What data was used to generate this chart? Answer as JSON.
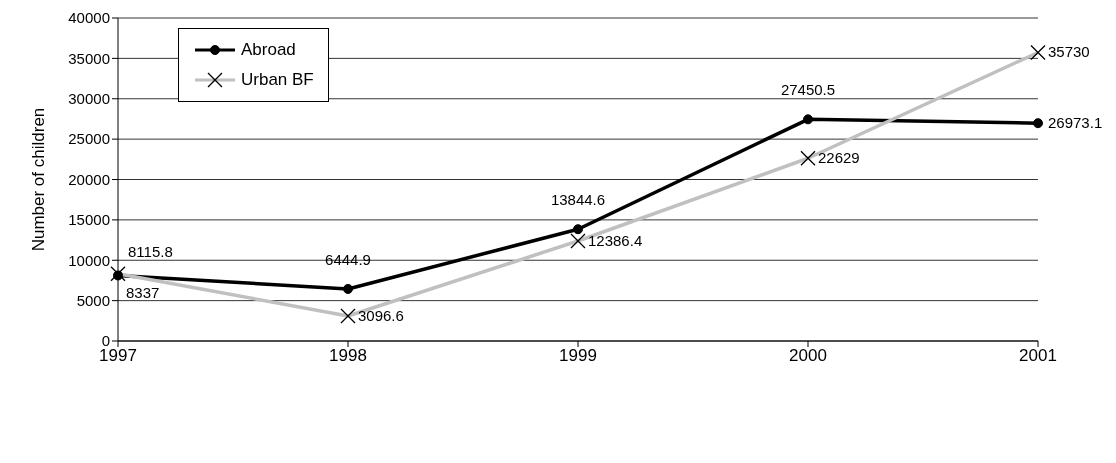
{
  "chart_data": {
    "type": "line",
    "ylabel": "Number of children",
    "x": [
      1997,
      1998,
      1999,
      2000,
      2001
    ],
    "xlim": [
      1997,
      2001
    ],
    "xticks": [
      1997,
      1998,
      1999,
      2000,
      2001
    ],
    "ylim": [
      0,
      40000
    ],
    "yticks": [
      0,
      5000,
      10000,
      15000,
      20000,
      25000,
      30000,
      35000,
      40000
    ],
    "grid": "y",
    "legend": "top left",
    "data_labels": true,
    "line_style": "solid",
    "series": [
      {
        "name": "Abroad",
        "color": "#000000",
        "marker": "circle",
        "values": [
          8115.8,
          6444.9,
          13844.6,
          27450.5,
          26973.1
        ]
      },
      {
        "name": "Urban BF",
        "color": "#c0c0c0",
        "marker": "cross",
        "values": [
          8337,
          3096.6,
          12386.4,
          22629,
          35730
        ]
      }
    ]
  }
}
